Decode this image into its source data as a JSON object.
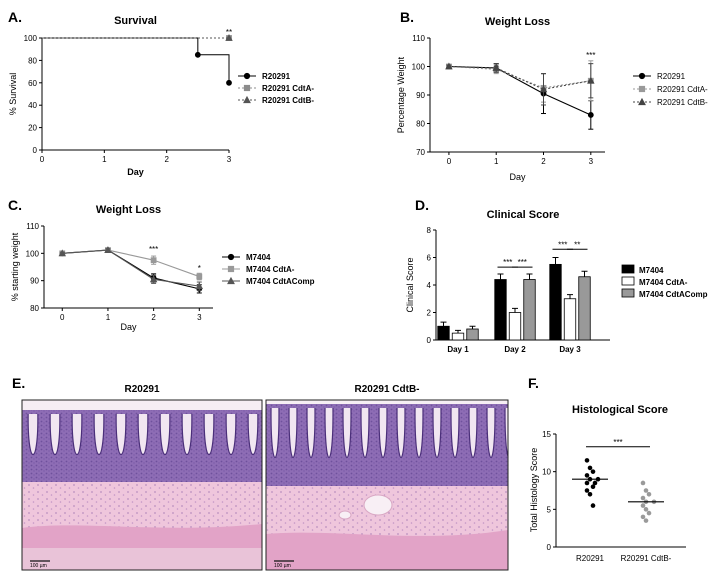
{
  "panels": {
    "A": "A.",
    "B": "B.",
    "C": "C.",
    "D": "D.",
    "E": "E.",
    "F": "F."
  },
  "histology": {
    "left_title": "R20291",
    "right_title": "R20291  CdtB-",
    "scale_bar": "100 µm",
    "colors": {
      "stroma": "#efc6dc",
      "epithelium": "#8e6db5",
      "muscle": "#e2a3c7",
      "lumen": "#f6eef4"
    }
  },
  "chart_data": [
    {
      "id": "A",
      "type": "line",
      "title": "Survival",
      "xlabel": "Day",
      "ylabel": "% Survival",
      "xlim": [
        0,
        3
      ],
      "ylim": [
        0,
        100
      ],
      "xticks": [
        0,
        1,
        2,
        3
      ],
      "yticks": [
        0,
        20,
        40,
        60,
        80,
        100
      ],
      "series": [
        {
          "name": "R20291",
          "color": "#000000",
          "marker": "circle",
          "dash": false,
          "step": true,
          "x": [
            0,
            2.5,
            3
          ],
          "y": [
            100,
            85,
            60
          ]
        },
        {
          "name": "R20291 CdtA-",
          "color": "#8c8c8c",
          "marker": "square",
          "dash": true,
          "step": true,
          "x": [
            0,
            3
          ],
          "y": [
            100,
            100
          ]
        },
        {
          "name": "R20291 CdtB-",
          "color": "#555555",
          "marker": "triangle",
          "dash": true,
          "step": true,
          "x": [
            0,
            3
          ],
          "y": [
            100,
            100
          ]
        }
      ],
      "annotations": [
        {
          "text": "**",
          "x": 3,
          "y": 100
        }
      ]
    },
    {
      "id": "B",
      "type": "line",
      "title": "Weight Loss",
      "xlabel": "Day",
      "ylabel": "Percentage Weight",
      "xlim": [
        -0.4,
        3.3
      ],
      "ylim": [
        70,
        110
      ],
      "xticks": [
        0,
        1,
        2,
        3
      ],
      "yticks": [
        70,
        80,
        90,
        100,
        110
      ],
      "series": [
        {
          "name": "R20291",
          "color": "#000000",
          "marker": "circle",
          "dash": false,
          "x": [
            0,
            1,
            2,
            3
          ],
          "y": [
            100,
            99.5,
            90.5,
            83
          ],
          "err": [
            0.5,
            1.5,
            7,
            5
          ]
        },
        {
          "name": "R20291  CdtA-",
          "color": "#999999",
          "marker": "square",
          "dash": true,
          "x": [
            0,
            1,
            2,
            3
          ],
          "y": [
            100,
            99,
            92.5,
            95
          ],
          "err": [
            0.5,
            1.5,
            5,
            7
          ]
        },
        {
          "name": "R20291  CdtB-",
          "color": "#444444",
          "marker": "triangle",
          "dash": true,
          "x": [
            0,
            1,
            2,
            3
          ],
          "y": [
            100,
            99.5,
            92,
            95
          ],
          "err": [
            0.5,
            1.5,
            5.5,
            6
          ]
        }
      ],
      "annotations": [
        {
          "text": "***",
          "x": 3,
          "y": 103
        }
      ]
    },
    {
      "id": "C",
      "type": "line",
      "title": "Weight  Loss",
      "xlabel": "Day",
      "ylabel": "% starting weight",
      "xlim": [
        -0.4,
        3.3
      ],
      "ylim": [
        80,
        110
      ],
      "xticks": [
        0,
        1,
        2,
        3
      ],
      "yticks": [
        80,
        90,
        100,
        110
      ],
      "series": [
        {
          "name": "M7404",
          "color": "#000000",
          "marker": "circle",
          "x": [
            0,
            1,
            2,
            3
          ],
          "y": [
            100,
            101.2,
            91,
            87
          ],
          "err": [
            0.4,
            0.5,
            1.5,
            1.5
          ]
        },
        {
          "name": "M7404 CdtA-",
          "color": "#999999",
          "marker": "square",
          "x": [
            0,
            1,
            2,
            3
          ],
          "y": [
            100,
            101.2,
            97.5,
            91.5
          ],
          "err": [
            0.4,
            0.5,
            1.5,
            1.2
          ]
        },
        {
          "name": "M7404 CdtAComp",
          "color": "#555555",
          "marker": "triangle",
          "x": [
            0,
            1,
            2,
            3
          ],
          "y": [
            100,
            101.2,
            90.5,
            88
          ],
          "err": [
            0.4,
            0.5,
            1.5,
            1.5
          ]
        }
      ],
      "annotations": [
        {
          "text": "***",
          "x": 2,
          "y": 100.5
        },
        {
          "text": "*",
          "x": 3,
          "y": 93.5
        }
      ]
    },
    {
      "id": "D",
      "type": "bar",
      "title": "Clinical Score",
      "xlabel": "",
      "ylabel": "Clinical Score",
      "ylim": [
        0,
        8
      ],
      "yticks": [
        0,
        2,
        4,
        6,
        8
      ],
      "categories": [
        "Day 1",
        "Day 2",
        "Day 3"
      ],
      "series": [
        {
          "name": "M7404",
          "color": "#000000",
          "values": [
            1.0,
            4.4,
            5.5
          ],
          "err": [
            0.3,
            0.4,
            0.5
          ]
        },
        {
          "name": "M7404 CdtA-",
          "color": "#ffffff",
          "values": [
            0.5,
            2.0,
            3.0
          ],
          "err": [
            0.2,
            0.3,
            0.3
          ]
        },
        {
          "name": "M7404 CdtAComp",
          "color": "#999999",
          "values": [
            0.8,
            4.4,
            4.6
          ],
          "err": [
            0.2,
            0.4,
            0.4
          ]
        }
      ],
      "annotations": [
        {
          "text": "***",
          "category": 1,
          "from": 0,
          "to": 1,
          "y": 5.3
        },
        {
          "text": "***",
          "category": 1,
          "from": 1,
          "to": 2,
          "y": 5.3
        },
        {
          "text": "***",
          "category": 2,
          "from": 0,
          "to": 1,
          "y": 6.6
        },
        {
          "text": "**",
          "category": 2,
          "from": 1,
          "to": 2,
          "y": 6.6
        }
      ]
    },
    {
      "id": "F",
      "type": "scatter",
      "title": "Histological  Score",
      "xlabel": "",
      "ylabel": "Total Histology Score",
      "ylim": [
        0,
        15
      ],
      "yticks": [
        0,
        5,
        10,
        15
      ],
      "categories": [
        "R20291",
        "R20291 CdtB-"
      ],
      "series": [
        {
          "name": "R20291",
          "marker": "circle",
          "color": "#000000",
          "values": [
            11.5,
            10.5,
            10,
            9.5,
            9,
            9,
            8.5,
            8.5,
            8,
            7.5,
            7,
            5.5
          ],
          "mean": 9
        },
        {
          "name": "R20291 CdtB-",
          "marker": "circle",
          "color": "#9a9a9a",
          "values": [
            8.5,
            7.5,
            7,
            6.5,
            6,
            6,
            5.5,
            5,
            4.5,
            4,
            3.5
          ],
          "mean": 6
        }
      ],
      "annotations": [
        {
          "text": "***",
          "from": 0,
          "to": 1,
          "y": 13.3
        }
      ]
    }
  ]
}
